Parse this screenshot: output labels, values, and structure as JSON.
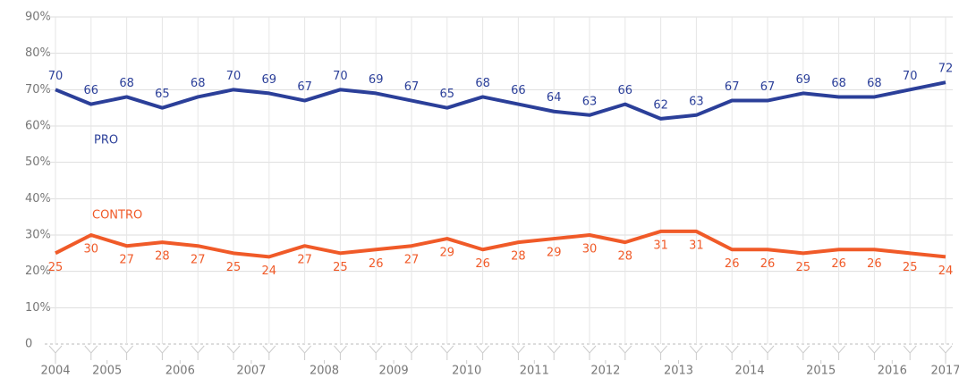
{
  "chart_data": {
    "type": "line",
    "categories": [
      null,
      null,
      null,
      null,
      null,
      null,
      null,
      null,
      null,
      null,
      null,
      null,
      null,
      null,
      null,
      null,
      null,
      null,
      null,
      null,
      null,
      null,
      null,
      null,
      null,
      null
    ],
    "series": [
      {
        "name": "PRO",
        "color": "#2b3f99",
        "values": [
          70,
          66,
          68,
          65,
          68,
          70,
          69,
          67,
          70,
          69,
          67,
          65,
          68,
          66,
          64,
          63,
          66,
          62,
          63,
          67,
          67,
          69,
          68,
          68,
          70,
          72
        ]
      },
      {
        "name": "CONTRO",
        "color": "#f05a28",
        "values": [
          25,
          30,
          27,
          28,
          27,
          25,
          24,
          27,
          25,
          26,
          27,
          29,
          26,
          28,
          29,
          30,
          28,
          31,
          31,
          26,
          26,
          25,
          26,
          26,
          25,
          24
        ]
      }
    ],
    "ylim": [
      0,
      90
    ],
    "yticks": [
      0,
      {
        "value": 10,
        "label": "10%"
      },
      {
        "value": 20,
        "label": "20%"
      },
      {
        "value": 30,
        "label": "30%"
      },
      {
        "value": 40,
        "label": "40%"
      },
      {
        "value": 50,
        "label": "50%"
      },
      {
        "value": 60,
        "label": "60%"
      },
      {
        "value": 70,
        "label": "70%"
      },
      {
        "value": 80,
        "label": "80%"
      },
      {
        "value": 90,
        "label": "90%"
      }
    ],
    "xticks": [
      {
        "value": 0,
        "label": "2004"
      },
      {
        "value": 1.45,
        "label": "2005"
      },
      {
        "value": 3.5,
        "label": "2006"
      },
      {
        "value": 5.5,
        "label": "2007"
      },
      {
        "value": 7.55,
        "label": "2008"
      },
      {
        "value": 9.5,
        "label": "2009"
      },
      {
        "value": 11.55,
        "label": "2010"
      },
      {
        "value": 13.45,
        "label": "2011"
      },
      {
        "value": 15.45,
        "label": "2012"
      },
      {
        "value": 17.5,
        "label": "2013"
      },
      {
        "value": 19.5,
        "label": "2014"
      },
      {
        "value": 21.5,
        "label": "2015"
      },
      {
        "value": 23.5,
        "label": "2016"
      },
      {
        "value": 25,
        "label": "2017"
      }
    ],
    "grid": true
  }
}
